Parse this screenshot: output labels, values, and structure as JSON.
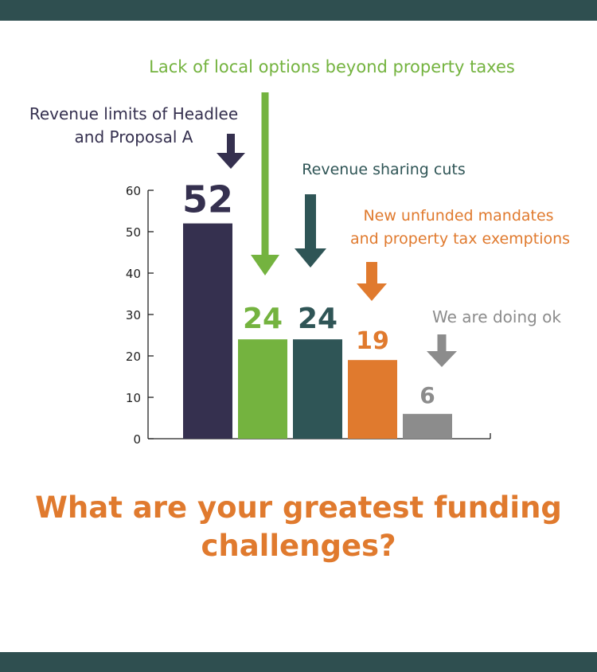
{
  "colors": {
    "band": "#2f4f50",
    "axis": "#222222",
    "title": "#e07a2e"
  },
  "chart_data": {
    "type": "bar",
    "title": "What are your greatest funding challenges?",
    "xlabel": "",
    "ylabel": "",
    "ylim": [
      0,
      60
    ],
    "yticks": [
      "0",
      "10",
      "20",
      "30",
      "40",
      "50",
      "60"
    ],
    "grid": false,
    "categories": [
      "Revenue limits of Headlee and Proposal A",
      "Lack of local options beyond property taxes",
      "Revenue sharing cuts",
      "New unfunded mandates and property tax exemptions",
      "We are doing ok"
    ],
    "values": [
      52,
      24,
      24,
      19,
      6
    ],
    "value_labels": [
      "52",
      "24",
      "24",
      "19",
      "6"
    ],
    "colors": [
      "#35304f",
      "#74b33f",
      "#2f5556",
      "#e07a2e",
      "#8c8c8c"
    ],
    "annotations": [
      {
        "lines": [
          "Revenue limits of Headlee",
          "and Proposal A"
        ],
        "color": "#35304f",
        "bar": 0
      },
      {
        "lines": [
          "Lack of local options beyond property taxes"
        ],
        "color": "#74b33f",
        "bar": 1
      },
      {
        "lines": [
          "Revenue sharing cuts"
        ],
        "color": "#2f5556",
        "bar": 2
      },
      {
        "lines": [
          "New unfunded mandates",
          "and property tax exemptions"
        ],
        "color": "#e07a2e",
        "bar": 3
      },
      {
        "lines": [
          "We are doing ok"
        ],
        "color": "#8c8c8c",
        "bar": 4
      }
    ]
  }
}
